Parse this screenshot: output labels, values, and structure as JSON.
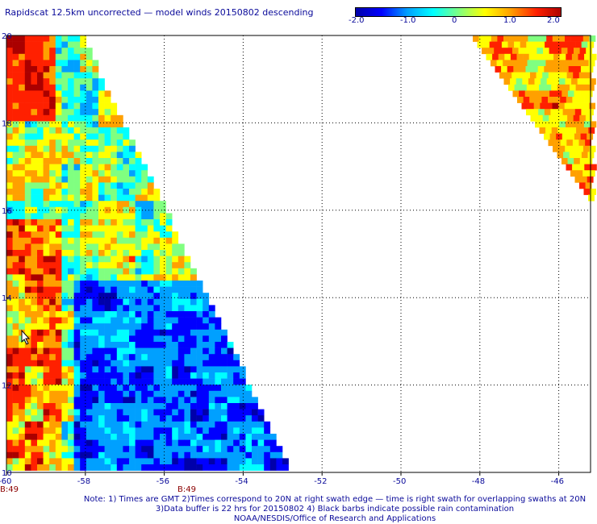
{
  "title": "Rapidscat 12.5km uncorrected — model winds 20150802 descending",
  "colorbar": {
    "ticks": [
      "-2.0",
      "-1.0",
      "0",
      "1.0",
      "2.0"
    ],
    "tick_values": [
      -2.0,
      -1.0,
      0,
      1.0,
      2.0
    ],
    "colors": [
      "#0000aa",
      "#0000ff",
      "#00a0ff",
      "#00ffff",
      "#80ff80",
      "#ffff00",
      "#ffa000",
      "#ff2000",
      "#aa0000"
    ]
  },
  "map": {
    "lon_range": [
      -60,
      -45
    ],
    "lat_range": [
      10,
      20
    ],
    "lon_labels": [
      "-60",
      "-58",
      "-56",
      "-54",
      "-52",
      "-50",
      "-48",
      "-46"
    ],
    "lon_values": [
      -60,
      -58,
      -56,
      -54,
      -52,
      -50,
      -48,
      -46
    ],
    "lat_labels": [
      "20",
      "18",
      "16",
      "14",
      "12",
      "10"
    ],
    "lat_values": [
      20,
      18,
      16,
      14,
      12,
      10
    ],
    "time_labels": [
      "B:49",
      "B:49"
    ],
    "time_label_lons": [
      -60,
      -55.5
    ]
  },
  "footnote": {
    "line1": "Note: 1) Times are GMT 2)Times correspond to 20N at right swath edge — time is right swath for overlapping swaths at 20N",
    "line2": "3)Data buffer is 22 hrs for 20150802 4) Black barbs indicate possible rain contamination",
    "line3": "NOAA/NESDIS/Office of Research and Applications"
  }
}
